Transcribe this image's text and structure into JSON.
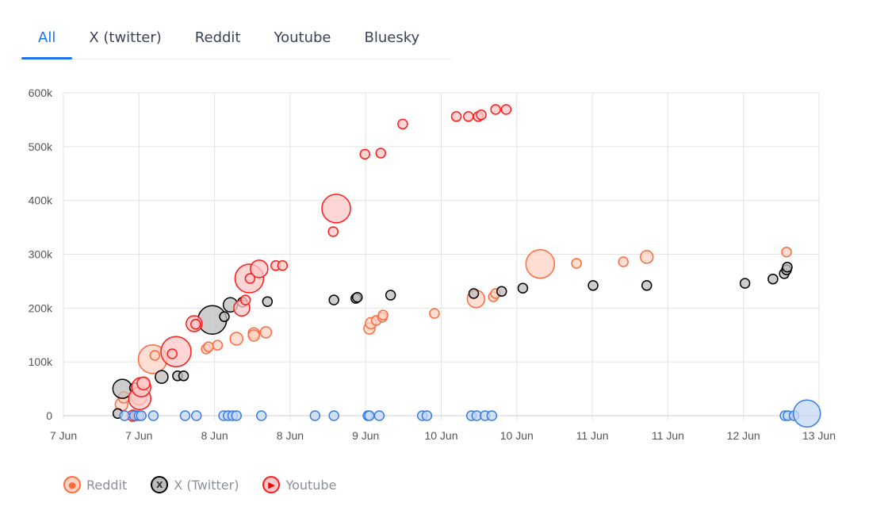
{
  "tabs": [
    {
      "label": "All",
      "active": true
    },
    {
      "label": "X (twitter)"
    },
    {
      "label": "Reddit"
    },
    {
      "label": "Youtube"
    },
    {
      "label": "Bluesky"
    }
  ],
  "colors": {
    "accent": "#1a73e8"
  },
  "chart_data": {
    "type": "scatter",
    "title": "",
    "xlabel": "",
    "ylabel": "",
    "x_units": "tick intervals from first tick",
    "xlim": [
      0,
      10
    ],
    "ylim": [
      0,
      600000
    ],
    "grid": true,
    "x_tick_labels": [
      "7 Jun",
      "7 Jun",
      "8 Jun",
      "8 Jun",
      "9 Jun",
      "10 Jun",
      "10 Jun",
      "11 Jun",
      "11 Jun",
      "12 Jun",
      "13 Jun"
    ],
    "y_ticks": [
      0,
      100000,
      200000,
      300000,
      400000,
      500000,
      600000
    ],
    "y_tick_labels": [
      "0",
      "100k",
      "200k",
      "300k",
      "400k",
      "500k",
      "600k"
    ],
    "legend_position": "bottom-left",
    "series": [
      {
        "name": "Reddit",
        "icon": "reddit-icon",
        "stroke": "#ff6a3d",
        "fill": "#ffd3c4",
        "points": [
          [
            0.77,
            21000,
            8
          ],
          [
            0.8,
            34000,
            7
          ],
          [
            1.0,
            35000,
            10
          ],
          [
            0.98,
            50000,
            8
          ],
          [
            1.18,
            105000,
            18
          ],
          [
            1.21,
            112000,
            6
          ],
          [
            1.89,
            124000,
            6
          ],
          [
            1.92,
            128000,
            6
          ],
          [
            2.04,
            131000,
            6
          ],
          [
            2.29,
            143000,
            8
          ],
          [
            2.52,
            153000,
            7
          ],
          [
            2.52,
            149000,
            7
          ],
          [
            2.68,
            155000,
            7
          ],
          [
            4.05,
            162000,
            7
          ],
          [
            4.07,
            172000,
            7
          ],
          [
            4.14,
            177000,
            6
          ],
          [
            4.22,
            183000,
            6
          ],
          [
            4.23,
            187000,
            6
          ],
          [
            4.91,
            190000,
            6
          ],
          [
            5.46,
            217000,
            11
          ],
          [
            5.69,
            221000,
            6
          ],
          [
            5.72,
            227000,
            6
          ],
          [
            6.31,
            282000,
            18
          ],
          [
            6.79,
            283000,
            6
          ],
          [
            7.41,
            286000,
            6
          ],
          [
            7.72,
            295000,
            8
          ],
          [
            9.57,
            304000,
            6
          ]
        ]
      },
      {
        "name": "X (Twitter)",
        "icon": "x-icon",
        "stroke": "#000000",
        "fill": "#bdbdbd",
        "points": [
          [
            0.72,
            4000,
            6
          ],
          [
            0.78,
            50000,
            12
          ],
          [
            0.94,
            52000,
            6
          ],
          [
            1.3,
            72000,
            8
          ],
          [
            1.51,
            74000,
            6
          ],
          [
            1.59,
            74000,
            6
          ],
          [
            1.97,
            178000,
            18
          ],
          [
            2.13,
            184000,
            6
          ],
          [
            2.21,
            206000,
            9
          ],
          [
            2.37,
            211000,
            6
          ],
          [
            2.7,
            212000,
            6
          ],
          [
            3.58,
            215000,
            6
          ],
          [
            3.87,
            218000,
            6
          ],
          [
            3.89,
            220000,
            6
          ],
          [
            4.33,
            224000,
            6
          ],
          [
            5.43,
            227000,
            6
          ],
          [
            5.8,
            231000,
            6
          ],
          [
            6.08,
            237000,
            6
          ],
          [
            7.01,
            242000,
            6
          ],
          [
            7.72,
            242000,
            6
          ],
          [
            9.02,
            246000,
            6
          ],
          [
            9.39,
            254000,
            6
          ],
          [
            9.54,
            264000,
            6
          ],
          [
            9.57,
            271000,
            6
          ],
          [
            9.58,
            276000,
            6
          ]
        ]
      },
      {
        "name": "Youtube",
        "icon": "youtube-icon",
        "stroke": "#ff1a1a",
        "fill": "#ffc8c8",
        "points": [
          [
            0.92,
            0,
            7
          ],
          [
            0.97,
            0,
            6
          ],
          [
            1.01,
            32000,
            14
          ],
          [
            1.03,
            53000,
            12
          ],
          [
            1.06,
            60000,
            8
          ],
          [
            1.49,
            119000,
            19
          ],
          [
            1.44,
            115000,
            6
          ],
          [
            1.73,
            171000,
            10
          ],
          [
            1.75,
            170000,
            6
          ],
          [
            2.36,
            200000,
            10
          ],
          [
            2.41,
            215000,
            6
          ],
          [
            2.46,
            255000,
            18
          ],
          [
            2.47,
            255000,
            6
          ],
          [
            2.59,
            273000,
            11
          ],
          [
            2.81,
            279000,
            6
          ],
          [
            2.9,
            279000,
            6
          ],
          [
            3.57,
            342000,
            6
          ],
          [
            3.61,
            385000,
            18
          ],
          [
            3.99,
            486000,
            6
          ],
          [
            4.2,
            488000,
            6
          ],
          [
            4.49,
            542000,
            6
          ],
          [
            5.2,
            556000,
            6
          ],
          [
            5.36,
            556000,
            6
          ],
          [
            5.49,
            556000,
            6
          ],
          [
            5.53,
            559000,
            6
          ],
          [
            5.72,
            569000,
            6
          ],
          [
            5.86,
            569000,
            6
          ]
        ]
      },
      {
        "name": "Bluesky",
        "icon": "bluesky-icon",
        "stroke": "#3b7de0",
        "fill": "#c5d8f5",
        "in_legend": false,
        "points": [
          [
            0.81,
            0,
            6
          ],
          [
            0.94,
            0,
            6
          ],
          [
            1.0,
            0,
            6
          ],
          [
            1.03,
            0,
            6
          ],
          [
            1.19,
            0,
            6
          ],
          [
            1.61,
            0,
            6
          ],
          [
            1.76,
            0,
            6
          ],
          [
            2.12,
            0,
            6
          ],
          [
            2.18,
            0,
            6
          ],
          [
            2.24,
            0,
            6
          ],
          [
            2.29,
            0,
            6
          ],
          [
            2.62,
            0,
            6
          ],
          [
            3.33,
            0,
            6
          ],
          [
            3.58,
            0,
            6
          ],
          [
            4.03,
            0,
            6
          ],
          [
            4.05,
            0,
            6
          ],
          [
            4.18,
            0,
            6
          ],
          [
            4.75,
            0,
            6
          ],
          [
            4.81,
            0,
            6
          ],
          [
            5.4,
            0,
            6
          ],
          [
            5.47,
            0,
            6
          ],
          [
            5.58,
            0,
            6
          ],
          [
            5.67,
            0,
            6
          ],
          [
            9.55,
            0,
            6
          ],
          [
            9.59,
            0,
            6
          ],
          [
            9.67,
            0,
            6
          ],
          [
            9.84,
            4000,
            17
          ]
        ]
      }
    ]
  },
  "legend": [
    {
      "label": "Reddit"
    },
    {
      "label": "X (Twitter)"
    },
    {
      "label": "Youtube"
    }
  ]
}
